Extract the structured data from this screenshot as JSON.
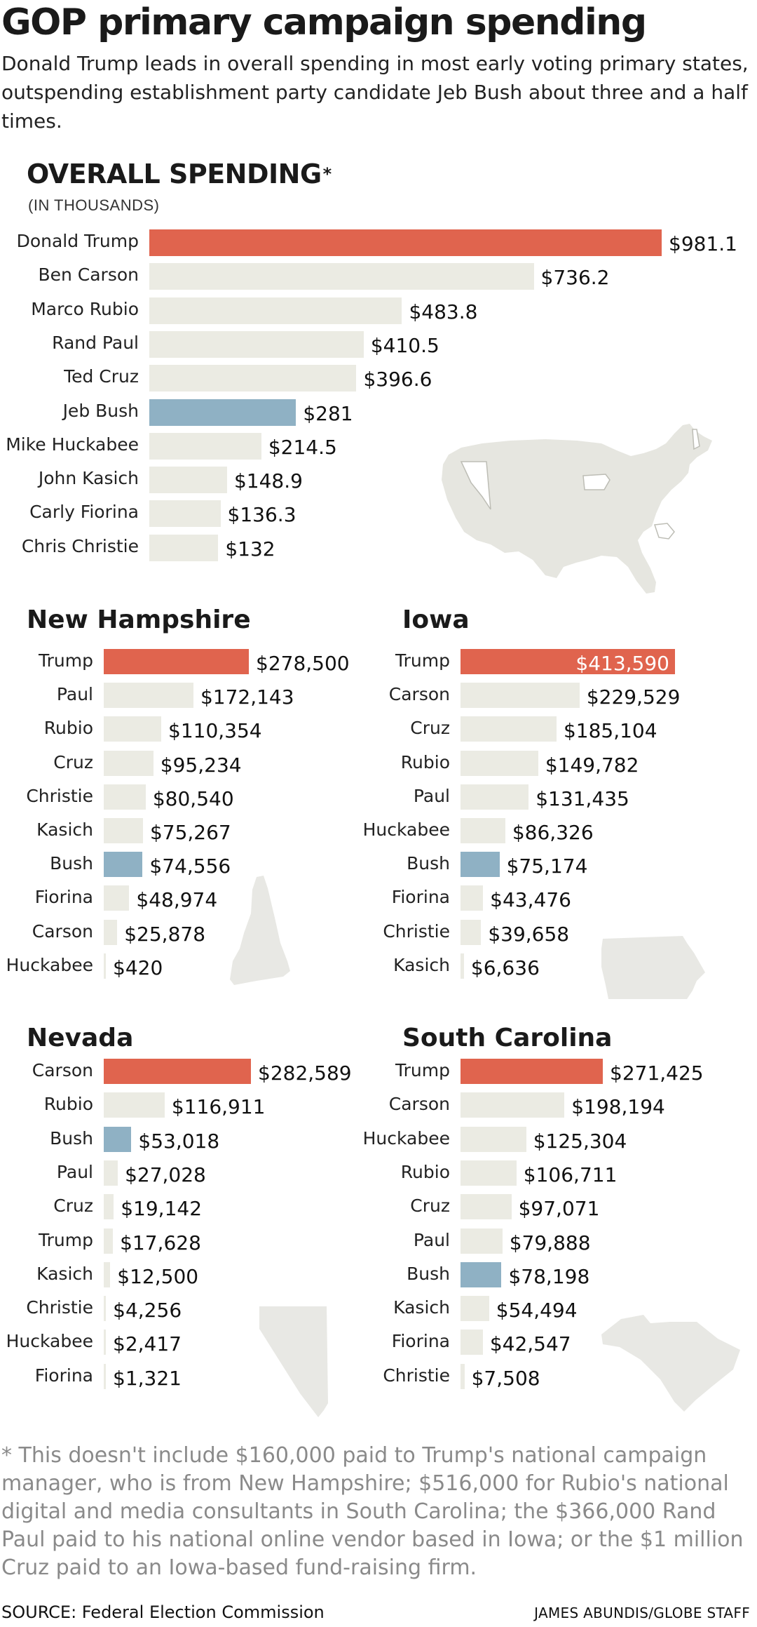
{
  "header": {
    "title": "GOP primary campaign spending",
    "subtitle": "Donald Trump leads in overall spending in most early voting primary states, outspending establishment party candidate Jeb Bush about three and a half times."
  },
  "colors": {
    "highlight_trump": "#e0644e",
    "highlight_bush": "#8fb1c4",
    "bar_default": "#ebebe3",
    "map_fill": "#e6e6e0"
  },
  "chart_data": [
    {
      "type": "bar",
      "orientation": "horizontal",
      "title": "OVERALL SPENDING",
      "title_marker": "*",
      "unit_label": "(IN THOUSANDS)",
      "categories": [
        "Donald Trump",
        "Ben Carson",
        "Marco Rubio",
        "Rand Paul",
        "Ted Cruz",
        "Jeb Bush",
        "Mike Huckabee",
        "John Kasich",
        "Carly Fiorina",
        "Chris Christie"
      ],
      "values": [
        981.1,
        736.2,
        483.8,
        410.5,
        396.6,
        281,
        214.5,
        148.9,
        136.3,
        132
      ],
      "value_labels": [
        "$981.1",
        "$736.2",
        "$483.8",
        "$410.5",
        "$396.6",
        "$281",
        "$214.5",
        "$148.9",
        "$136.3",
        "$132"
      ],
      "highlight": {
        "Donald Trump": "trump",
        "Jeb Bush": "bush"
      }
    },
    {
      "type": "bar",
      "orientation": "horizontal",
      "title": "New Hampshire",
      "categories": [
        "Trump",
        "Paul",
        "Rubio",
        "Cruz",
        "Christie",
        "Kasich",
        "Bush",
        "Fiorina",
        "Carson",
        "Huckabee"
      ],
      "values": [
        278500,
        172143,
        110354,
        95234,
        80540,
        75267,
        74556,
        48974,
        25878,
        420
      ],
      "value_labels": [
        "$278,500",
        "$172,143",
        "$110,354",
        "$95,234",
        "$80,540",
        "$75,267",
        "$74,556",
        "$48,974",
        "$25,878",
        "$420"
      ],
      "highlight": {
        "Trump": "trump",
        "Bush": "bush"
      }
    },
    {
      "type": "bar",
      "orientation": "horizontal",
      "title": "Iowa",
      "categories": [
        "Trump",
        "Carson",
        "Cruz",
        "Rubio",
        "Paul",
        "Huckabee",
        "Bush",
        "Fiorina",
        "Christie",
        "Kasich"
      ],
      "values": [
        413590,
        229529,
        185104,
        149782,
        131435,
        86326,
        75174,
        43476,
        39658,
        6636
      ],
      "value_labels": [
        "$413,590",
        "$229,529",
        "$185,104",
        "$149,782",
        "$131,435",
        "$86,326",
        "$75,174",
        "$43,476",
        "$39,658",
        "$6,636"
      ],
      "highlight": {
        "Trump": "trump",
        "Bush": "bush"
      }
    },
    {
      "type": "bar",
      "orientation": "horizontal",
      "title": "Nevada",
      "categories": [
        "Carson",
        "Rubio",
        "Bush",
        "Paul",
        "Cruz",
        "Trump",
        "Kasich",
        "Christie",
        "Huckabee",
        "Fiorina"
      ],
      "values": [
        282589,
        116911,
        53018,
        27028,
        19142,
        17628,
        12500,
        4256,
        2417,
        1321
      ],
      "value_labels": [
        "$282,589",
        "$116,911",
        "$53,018",
        "$27,028",
        "$19,142",
        "$17,628",
        "$12,500",
        "$4,256",
        "$2,417",
        "$1,321"
      ],
      "highlight": {
        "Carson": "trump",
        "Bush": "bush"
      }
    },
    {
      "type": "bar",
      "orientation": "horizontal",
      "title": "South Carolina",
      "categories": [
        "Trump",
        "Carson",
        "Huckabee",
        "Rubio",
        "Cruz",
        "Paul",
        "Bush",
        "Kasich",
        "Fiorina",
        "Christie"
      ],
      "values": [
        271425,
        198194,
        125304,
        106711,
        97071,
        79888,
        78198,
        54494,
        42547,
        7508
      ],
      "value_labels": [
        "$271,425",
        "$198,194",
        "$125,304",
        "$106,711",
        "$97,071",
        "$79,888",
        "$78,198",
        "$54,494",
        "$42,547",
        "$7,508"
      ],
      "highlight": {
        "Trump": "trump",
        "Bush": "bush"
      }
    }
  ],
  "footnote": "* This doesn't include $160,000 paid to Trump's national campaign manager, who is from New Hampshire; $516,000 for Rubio's national digital and media consultants in South Carolina; the $366,000 Rand Paul paid to his national online vendor based in Iowa; or the $1 million Cruz paid to an Iowa-based fund-raising firm.",
  "source": "SOURCE: Federal Election Commission",
  "credit": "JAMES ABUNDIS/GLOBE STAFF",
  "icons": [
    "us-map-icon",
    "new-hampshire-map-icon",
    "iowa-map-icon",
    "nevada-map-icon",
    "south-carolina-map-icon"
  ]
}
